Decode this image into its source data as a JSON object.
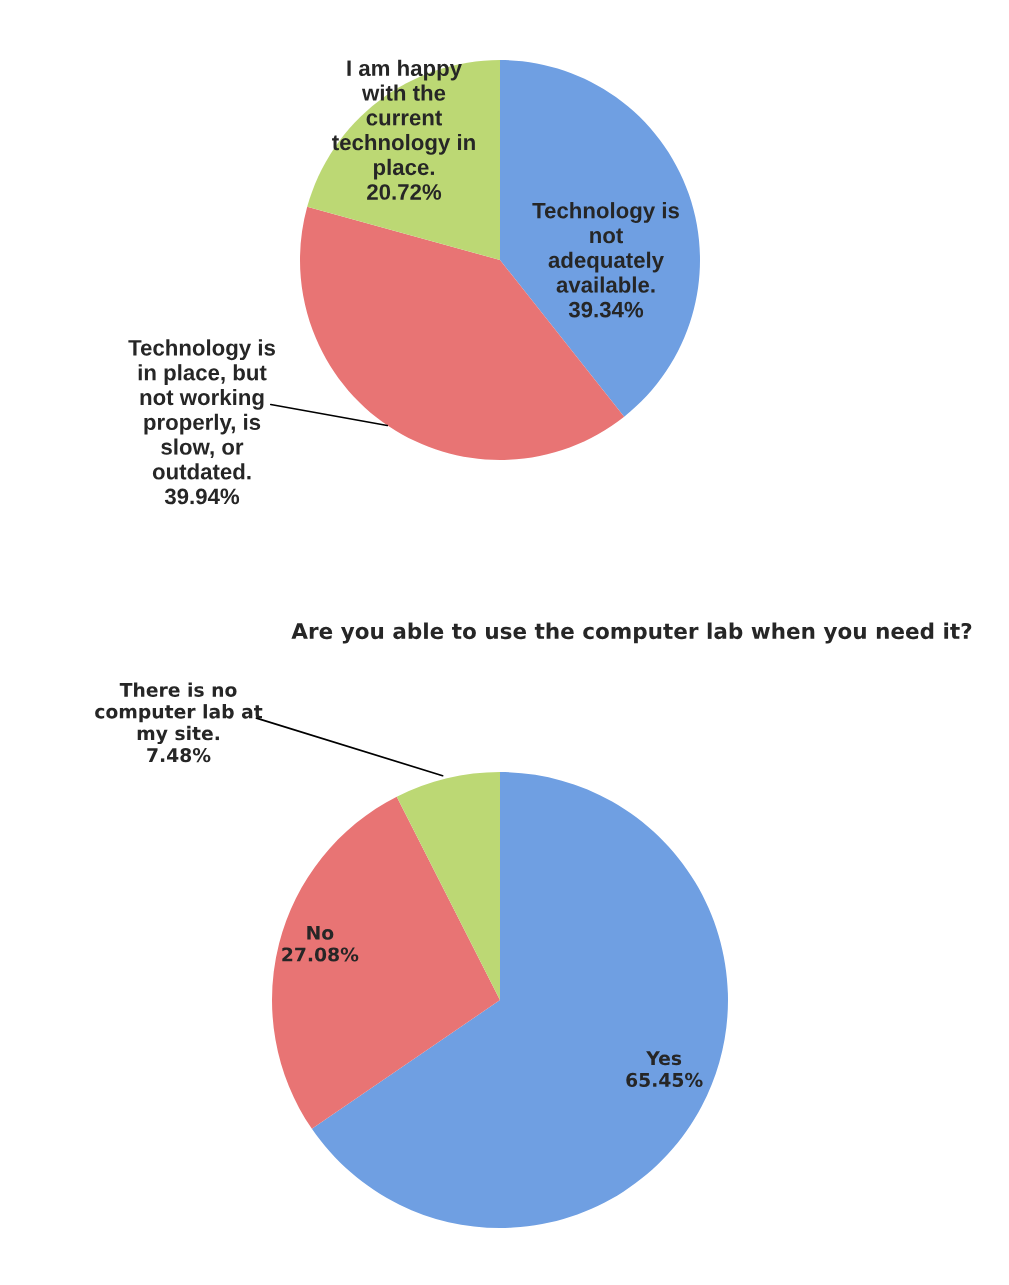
{
  "chart_data": [
    {
      "type": "pie",
      "categories": [
        "Technology is not adequately available.",
        "Technology is in place, but not working properly, is slow, or outdated.",
        "I am happy with the current technology in place."
      ],
      "values": [
        39.34,
        39.94,
        20.72
      ],
      "value_labels": [
        "39.34%",
        "39.94%",
        "20.72%"
      ],
      "colors": [
        "#6f9fe2",
        "#e87474",
        "#bcd874"
      ]
    },
    {
      "type": "pie",
      "title": "Are you able to use the computer lab when you need it?",
      "categories": [
        "Yes",
        "No",
        "There is no computer lab at my site."
      ],
      "values": [
        65.45,
        27.08,
        7.48
      ],
      "value_labels": [
        "65.45%",
        "27.08%",
        "7.48%"
      ],
      "colors": [
        "#6f9fe2",
        "#e87474",
        "#bcd874"
      ]
    }
  ]
}
